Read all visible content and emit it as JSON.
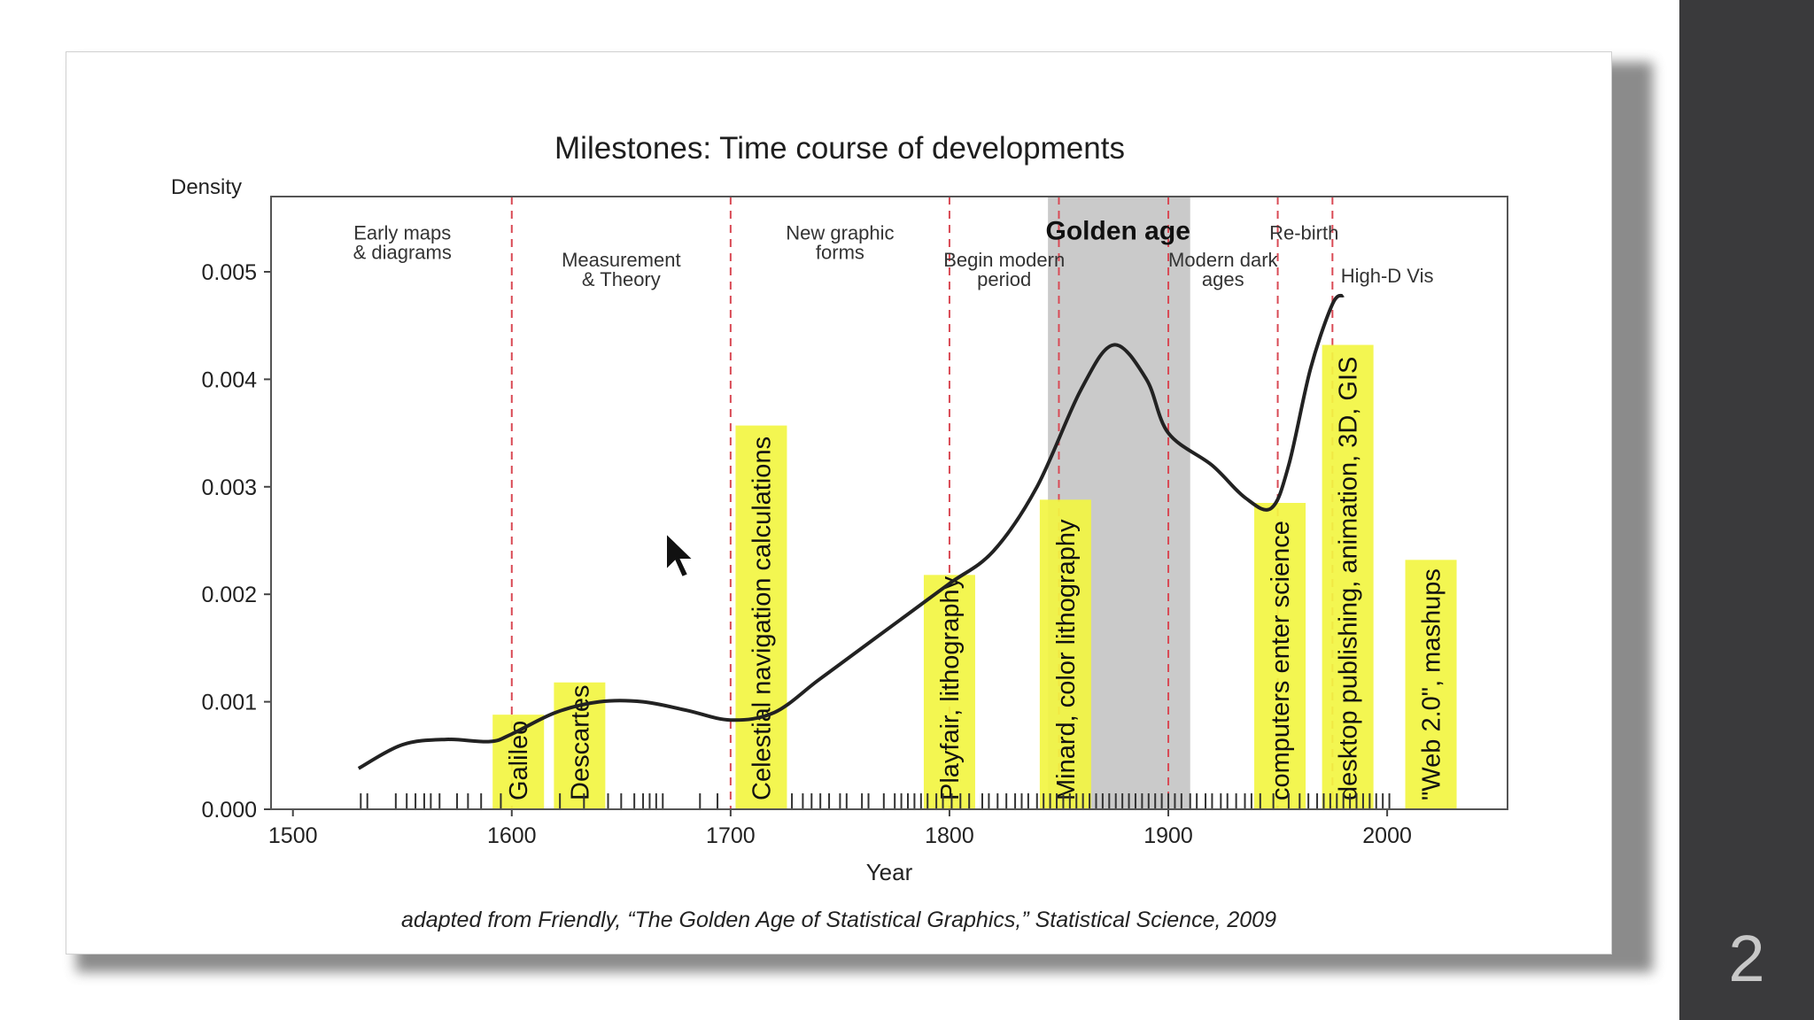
{
  "slide": {
    "caption": "adapted from Friendly, “The Golden Age of Statistical Graphics,” Statistical Science, 2009",
    "number": "2"
  },
  "colors": {
    "background": "#ffffff",
    "sidebar": "#3a3a3c",
    "golden_band": "#bdbdbd",
    "highlight": "#f2f542",
    "era_line": "#d94a55",
    "curve": "#222222"
  },
  "chart_data": {
    "type": "line",
    "title": "Milestones: Time course of developments",
    "xlabel": "Year",
    "ylabel": "Density",
    "xlim": [
      1490,
      2055
    ],
    "ylim": [
      0,
      0.0057
    ],
    "x_ticks": [
      1500,
      1600,
      1700,
      1800,
      1900,
      2000
    ],
    "y_ticks": [
      0.0,
      0.001,
      0.002,
      0.003,
      0.004,
      0.005
    ],
    "y_tick_labels": [
      "0.000",
      "0.001",
      "0.002",
      "0.003",
      "0.004",
      "0.005"
    ],
    "golden_age_band": [
      1845,
      1910
    ],
    "era_boundaries": [
      1600,
      1700,
      1800,
      1850,
      1900,
      1950,
      1975
    ],
    "era_labels": [
      {
        "text": "Early maps\n& diagrams",
        "x": 1550,
        "y": 0.0053
      },
      {
        "text": "Measurement\n& Theory",
        "x": 1650,
        "y": 0.00505
      },
      {
        "text": "New graphic\nforms",
        "x": 1750,
        "y": 0.0053
      },
      {
        "text": "Begin modern\nperiod",
        "x": 1825,
        "y": 0.00505
      },
      {
        "text": "Golden age",
        "x": 1877,
        "y": 0.0053,
        "bold": true
      },
      {
        "text": "Modern dark\nages",
        "x": 1925,
        "y": 0.00505
      },
      {
        "text": "Re-birth",
        "x": 1962,
        "y": 0.0053
      },
      {
        "text": "High-D Vis",
        "x": 2000,
        "y": 0.0049
      }
    ],
    "series": [
      {
        "x": [
          1530,
          1550,
          1570,
          1590,
          1600,
          1620,
          1640,
          1660,
          1680,
          1700,
          1720,
          1740,
          1760,
          1780,
          1800,
          1820,
          1840,
          1860,
          1875,
          1890,
          1900,
          1920,
          1935,
          1947,
          1955,
          1965,
          1975,
          1980
        ],
        "y": [
          0.00038,
          0.0006,
          0.00065,
          0.00063,
          0.0007,
          0.0009,
          0.001,
          0.001,
          0.00092,
          0.00083,
          0.0009,
          0.0012,
          0.0015,
          0.0018,
          0.0021,
          0.0024,
          0.003,
          0.0039,
          0.00432,
          0.004,
          0.0035,
          0.0032,
          0.0029,
          0.0028,
          0.0032,
          0.0041,
          0.0047,
          0.00478
        ]
      }
    ],
    "highlighted_milestones": [
      {
        "text": "Galileo",
        "x": 1603,
        "height": 0.00088
      },
      {
        "text": "Descartes",
        "x": 1631,
        "height": 0.00118
      },
      {
        "text": "Celestial navigation calculations",
        "x": 1714,
        "height": 0.00357
      },
      {
        "text": "Playfair, lithography",
        "x": 1800,
        "height": 0.00218
      },
      {
        "text": "Minard, color lithography",
        "x": 1853,
        "height": 0.00288
      },
      {
        "text": "computers enter science",
        "x": 1951,
        "height": 0.00285
      },
      {
        "text": "desktop publishing, animation, 3D, GIS",
        "x": 1982,
        "height": 0.00432
      },
      {
        "text": "\"Web 2.0\", mashups",
        "x": 2020,
        "height": 0.00232
      }
    ],
    "rug_years": [
      1531,
      1534,
      1547,
      1552,
      1556,
      1560,
      1563,
      1567,
      1575,
      1580,
      1586,
      1595,
      1622,
      1633,
      1644,
      1650,
      1656,
      1660,
      1663,
      1666,
      1669,
      1686,
      1694,
      1728,
      1733,
      1737,
      1741,
      1745,
      1750,
      1753,
      1760,
      1763,
      1770,
      1775,
      1778,
      1781,
      1784,
      1787,
      1790,
      1794,
      1797,
      1801,
      1805,
      1809,
      1815,
      1818,
      1822,
      1826,
      1830,
      1833,
      1836,
      1840,
      1843,
      1846,
      1849,
      1852,
      1855,
      1858,
      1861,
      1864,
      1867,
      1870,
      1873,
      1876,
      1879,
      1882,
      1885,
      1888,
      1891,
      1894,
      1897,
      1900,
      1903,
      1906,
      1910,
      1913,
      1917,
      1920,
      1924,
      1927,
      1931,
      1935,
      1938,
      1942,
      1948,
      1955,
      1960,
      1964,
      1968,
      1971,
      1974,
      1977,
      1980,
      1983,
      1986,
      1989,
      1992,
      1995,
      1998,
      2001
    ]
  }
}
